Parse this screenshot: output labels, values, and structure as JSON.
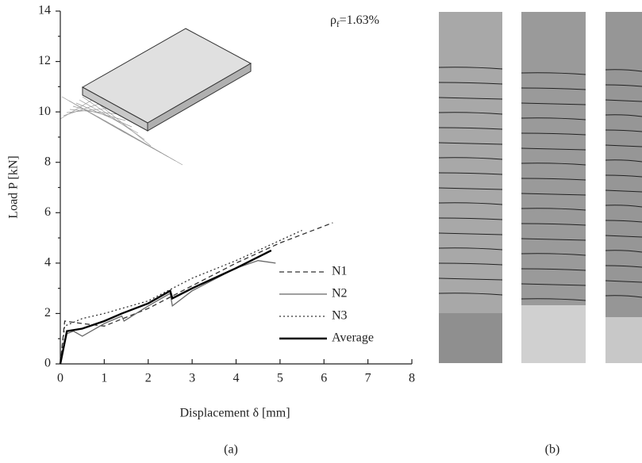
{
  "chart_data": {
    "type": "line",
    "xlabel": "Displacement δ [mm]",
    "ylabel": "Load P [kN]",
    "annotation": {
      "symbol": "ρ",
      "subscript": "f",
      "text": "=1.63%"
    },
    "xlim": [
      0,
      8
    ],
    "xticks": [
      0,
      1,
      2,
      3,
      4,
      5,
      6,
      7,
      8
    ],
    "ylim": [
      0,
      14
    ],
    "yticks": [
      0,
      2,
      4,
      6,
      8,
      10,
      12,
      14
    ],
    "yminorticks": [
      1,
      3,
      5,
      7,
      9,
      11,
      13
    ],
    "legend": "right",
    "series": [
      {
        "name": "N1",
        "color": "#333333",
        "dash": "6,4",
        "width": 1.3,
        "x": [
          0,
          0.1,
          0.5,
          1,
          2,
          3,
          4,
          5,
          6.2
        ],
        "values": [
          0,
          1.7,
          1.6,
          1.5,
          2.2,
          3.1,
          4.0,
          4.8,
          5.6
        ]
      },
      {
        "name": "N2",
        "color": "#666666",
        "dash": "",
        "width": 1.3,
        "x": [
          0,
          0.15,
          0.3,
          0.5,
          1,
          1.4,
          1.45,
          2,
          2.5,
          2.55,
          3,
          4,
          4.5,
          4.9
        ],
        "values": [
          0,
          1.2,
          1.3,
          1.1,
          1.6,
          1.9,
          1.7,
          2.3,
          2.8,
          2.3,
          2.9,
          3.8,
          4.1,
          4.0
        ]
      },
      {
        "name": "N3",
        "color": "#333333",
        "dash": "2,3",
        "width": 1.3,
        "x": [
          0,
          0.1,
          0.5,
          1,
          1.4,
          2,
          3,
          4,
          5,
          5.5
        ],
        "values": [
          0,
          1.5,
          1.8,
          2.0,
          2.2,
          2.5,
          3.4,
          4.1,
          4.9,
          5.3
        ]
      },
      {
        "name": "Average",
        "color": "#000000",
        "dash": "",
        "width": 2.4,
        "x": [
          0,
          0.15,
          0.5,
          1,
          1.4,
          2,
          2.5,
          2.55,
          3,
          4,
          4.8
        ],
        "values": [
          0,
          1.3,
          1.4,
          1.7,
          2.0,
          2.4,
          2.9,
          2.6,
          3.0,
          3.8,
          4.5
        ]
      }
    ]
  },
  "captions": [
    "(a)",
    "(b)"
  ]
}
